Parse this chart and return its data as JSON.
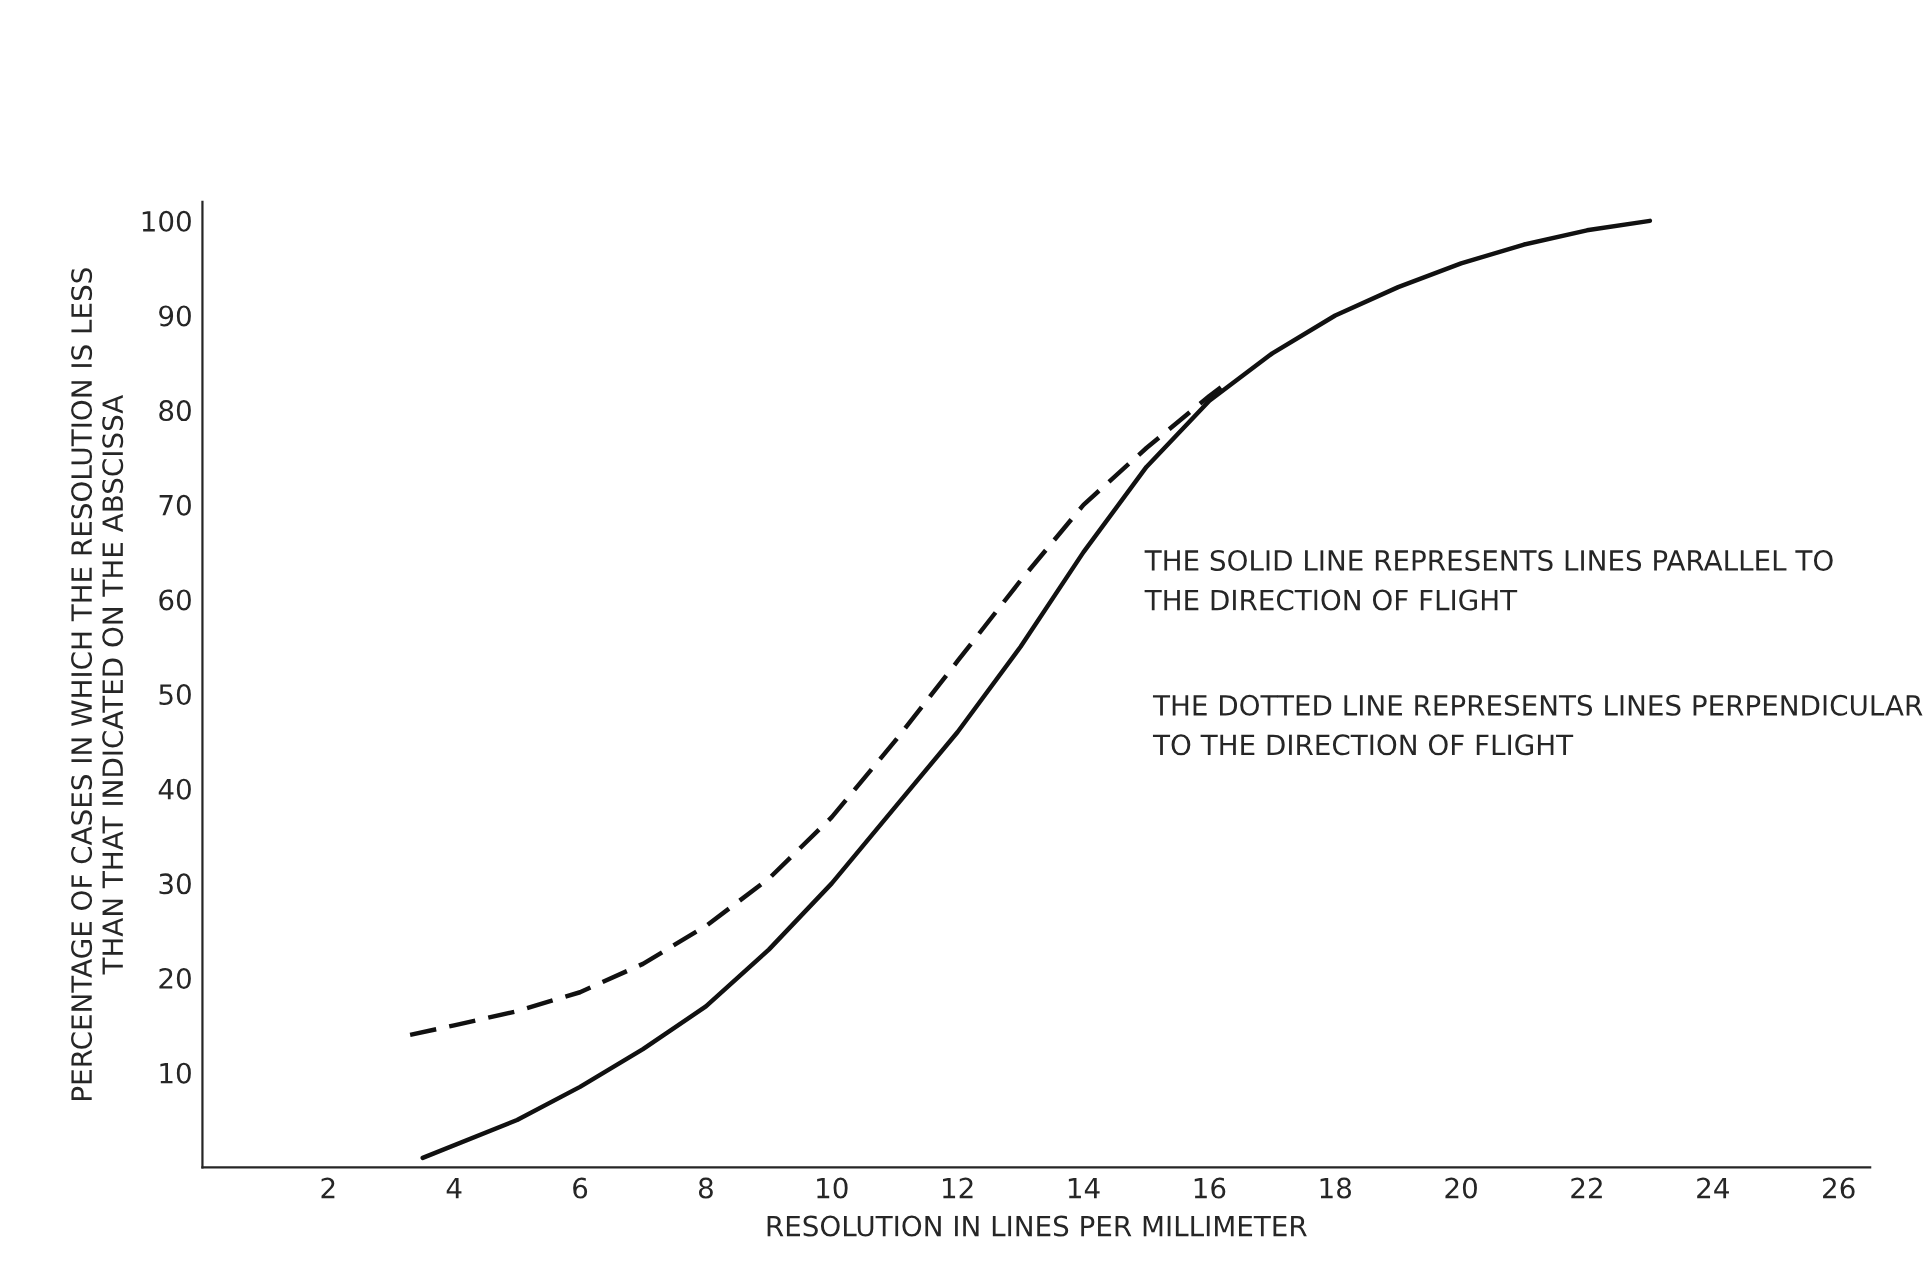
{
  "chart_data": {
    "type": "line",
    "xlabel": "RESOLUTION IN LINES PER MILLIMETER",
    "ylabel": "PERCENTAGE OF CASES IN WHICH THE RESOLUTION IS LESS\nTHAN THAT INDICATED ON THE ABSCISSA",
    "xlim": [
      0,
      26.5
    ],
    "xticks": [
      2,
      4,
      6,
      8,
      10,
      12,
      14,
      16,
      18,
      20,
      22,
      24,
      26
    ],
    "ylim": [
      0,
      102
    ],
    "yticks": [
      10,
      20,
      30,
      40,
      50,
      60,
      70,
      80,
      90,
      100
    ],
    "series": [
      {
        "color": "#111111",
        "line_style": "solid",
        "x": [
          3.5,
          5,
          6,
          7,
          8,
          9,
          10,
          11,
          12,
          13,
          14,
          15,
          16,
          17,
          18,
          19,
          20,
          21,
          22,
          23
        ],
        "values": [
          1,
          5,
          8.5,
          12.5,
          17,
          23,
          30,
          38,
          46,
          55,
          65,
          74,
          81,
          86,
          90,
          93,
          95.5,
          97.5,
          99,
          100
        ]
      },
      {
        "color": "#111111",
        "line_style": "dashed",
        "x": [
          3.3,
          4,
          5,
          6,
          7,
          8,
          9,
          10,
          11,
          12,
          13,
          14,
          15,
          16,
          16.3
        ],
        "values": [
          14,
          15,
          16.5,
          18.5,
          21.5,
          25.5,
          30.5,
          37,
          45,
          53.5,
          62,
          70,
          76,
          81.5,
          83
        ]
      }
    ],
    "annotations": [
      "THE SOLID LINE REPRESENTS LINES PARALLEL TO\nTHE DIRECTION OF FLIGHT",
      "THE DOTTED LINE REPRESENTS LINES PERPENDICULAR\nTO THE DIRECTION OF FLIGHT"
    ],
    "grid": false,
    "legend": false
  }
}
